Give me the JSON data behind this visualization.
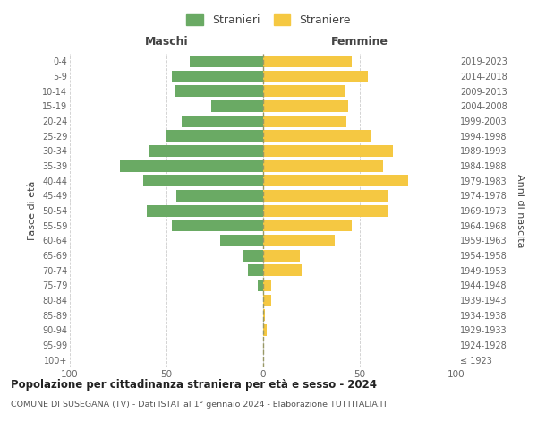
{
  "age_groups": [
    "100+",
    "95-99",
    "90-94",
    "85-89",
    "80-84",
    "75-79",
    "70-74",
    "65-69",
    "60-64",
    "55-59",
    "50-54",
    "45-49",
    "40-44",
    "35-39",
    "30-34",
    "25-29",
    "20-24",
    "15-19",
    "10-14",
    "5-9",
    "0-4"
  ],
  "birth_years": [
    "≤ 1923",
    "1924-1928",
    "1929-1933",
    "1934-1938",
    "1939-1943",
    "1944-1948",
    "1949-1953",
    "1954-1958",
    "1959-1963",
    "1964-1968",
    "1969-1973",
    "1974-1978",
    "1979-1983",
    "1984-1988",
    "1989-1993",
    "1994-1998",
    "1999-2003",
    "2004-2008",
    "2009-2013",
    "2014-2018",
    "2019-2023"
  ],
  "maschi": [
    0,
    0,
    0,
    0,
    0,
    3,
    8,
    10,
    22,
    47,
    60,
    45,
    62,
    74,
    59,
    50,
    42,
    27,
    46,
    47,
    38
  ],
  "femmine": [
    0,
    0,
    2,
    1,
    4,
    4,
    20,
    19,
    37,
    46,
    65,
    65,
    75,
    62,
    67,
    56,
    43,
    44,
    42,
    54,
    46
  ],
  "maschi_color": "#6aaa64",
  "femmine_color": "#f5c842",
  "background_color": "#ffffff",
  "grid_color": "#cccccc",
  "title": "Popolazione per cittadinanza straniera per età e sesso - 2024",
  "subtitle": "COMUNE DI SUSEGANA (TV) - Dati ISTAT al 1° gennaio 2024 - Elaborazione TUTTITALIA.IT",
  "xlabel_left": "Maschi",
  "xlabel_right": "Femmine",
  "ylabel_left": "Fasce di età",
  "ylabel_right": "Anni di nascita",
  "legend_maschi": "Stranieri",
  "legend_femmine": "Straniere",
  "xlim": 100
}
